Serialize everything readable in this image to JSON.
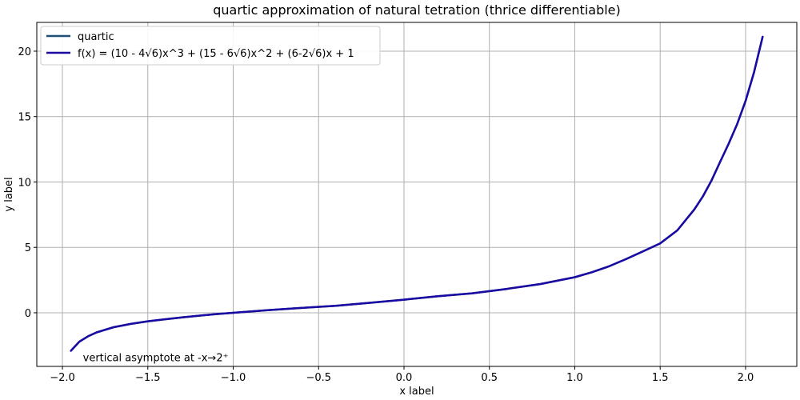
{
  "chart_data": {
    "type": "line",
    "title": "quartic approximation of natural tetration (thrice differentiable)",
    "xlabel": "x label",
    "ylabel": "y label",
    "xlim": [
      -2.15,
      2.3
    ],
    "ylim": [
      -4.1,
      22.2
    ],
    "xticks": [
      -2.0,
      -1.5,
      -1.0,
      -0.5,
      0.0,
      0.5,
      1.0,
      1.5,
      2.0
    ],
    "xtick_labels": [
      "−2.0",
      "−1.5",
      "−1.0",
      "−0.5",
      "0.0",
      "0.5",
      "1.0",
      "1.5",
      "2.0"
    ],
    "yticks": [
      0,
      5,
      10,
      15,
      20
    ],
    "ytick_labels": [
      "0",
      "5",
      "10",
      "15",
      "20"
    ],
    "grid": true,
    "legend_position": "top-left",
    "series": [
      {
        "name": "quartic",
        "color": "#1f4e79",
        "x": [
          -1.95,
          -1.9,
          -1.85,
          -1.8,
          -1.7,
          -1.6,
          -1.5,
          -1.4,
          -1.3,
          -1.2,
          -1.1,
          -1.0,
          -0.8,
          -0.6,
          -0.4,
          -0.2,
          0.0,
          0.2,
          0.4,
          0.6,
          0.8,
          1.0,
          1.1,
          1.2,
          1.3,
          1.4,
          1.5,
          1.6,
          1.7,
          1.75,
          1.8,
          1.85,
          1.9,
          1.95,
          2.0,
          2.05,
          2.1
        ],
        "y": [
          -2.9,
          -2.2,
          -1.8,
          -1.5,
          -1.1,
          -0.85,
          -0.65,
          -0.5,
          -0.35,
          -0.22,
          -0.1,
          0.0,
          0.2,
          0.37,
          0.53,
          0.76,
          1.0,
          1.27,
          1.49,
          1.82,
          2.2,
          2.72,
          3.1,
          3.55,
          4.1,
          4.7,
          5.3,
          6.3,
          7.9,
          8.9,
          10.1,
          11.5,
          12.9,
          14.4,
          16.2,
          18.4,
          21.1
        ]
      },
      {
        "name": "f(x) = (10 - 4√6)x^3 + (15 - 6√6)x^2 + (6-2√6)x + 1",
        "color": "#1a0aa3",
        "x": [
          -1.95,
          -1.9,
          -1.85,
          -1.8,
          -1.7,
          -1.6,
          -1.5,
          -1.4,
          -1.3,
          -1.2,
          -1.1,
          -1.0,
          -0.8,
          -0.6,
          -0.4,
          -0.2,
          0.0,
          0.2,
          0.4,
          0.6,
          0.8,
          1.0,
          1.1,
          1.2,
          1.3,
          1.4,
          1.5,
          1.6,
          1.7,
          1.75,
          1.8,
          1.85,
          1.9,
          1.95,
          2.0,
          2.05,
          2.1
        ],
        "y": [
          -2.9,
          -2.2,
          -1.8,
          -1.5,
          -1.1,
          -0.85,
          -0.65,
          -0.5,
          -0.35,
          -0.22,
          -0.1,
          0.0,
          0.2,
          0.37,
          0.53,
          0.76,
          1.0,
          1.27,
          1.49,
          1.82,
          2.2,
          2.72,
          3.1,
          3.55,
          4.1,
          4.7,
          5.3,
          6.3,
          7.9,
          8.9,
          10.1,
          11.5,
          12.9,
          14.4,
          16.2,
          18.4,
          21.1
        ]
      }
    ],
    "annotations": [
      {
        "text": "vertical asymptote at -x→2⁺",
        "x": -1.88,
        "y": -3.7
      }
    ]
  }
}
